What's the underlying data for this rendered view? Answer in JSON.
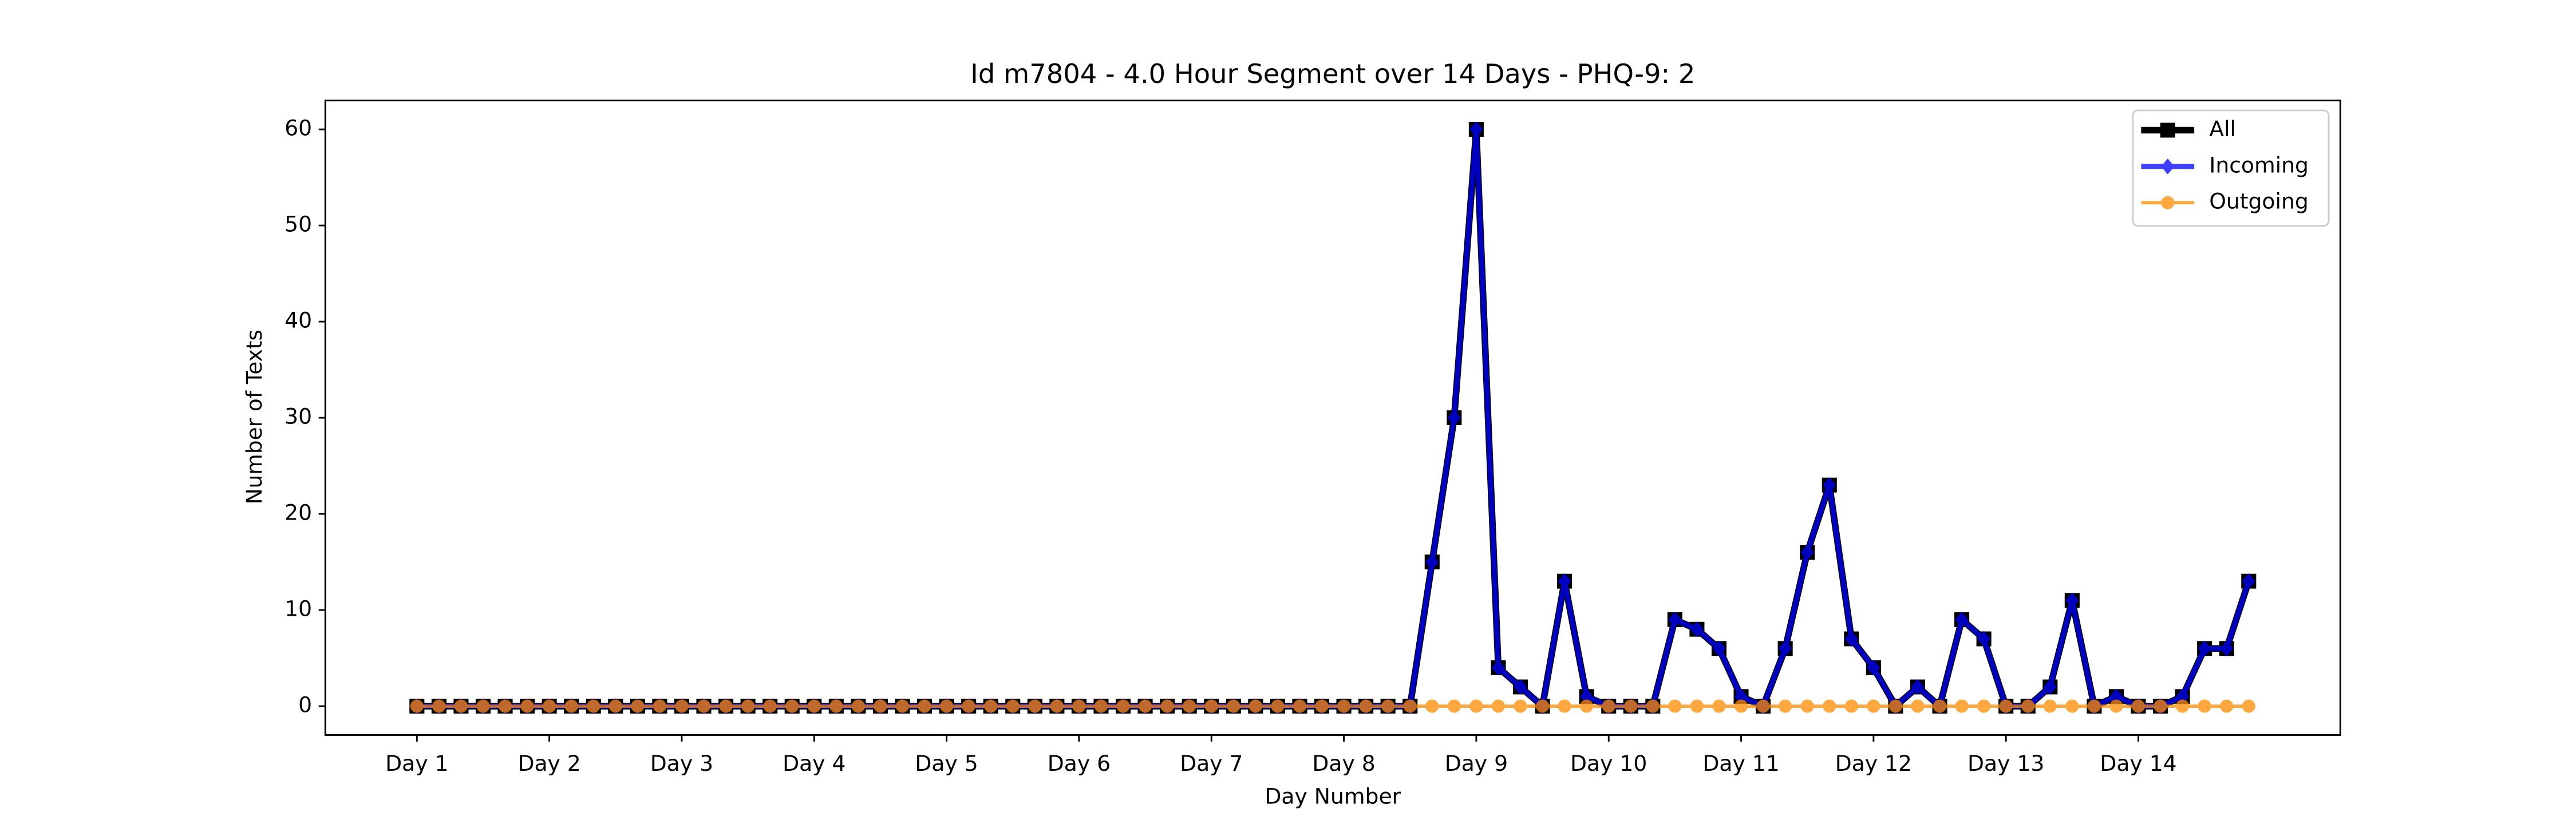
{
  "chart_data": {
    "type": "line",
    "title": "Id m7804 - 4.0 Hour Segment over 14 Days - PHQ-9: 2",
    "xlabel": "Day Number",
    "ylabel": "Number of Texts",
    "x": [
      0,
      1,
      2,
      3,
      4,
      5,
      6,
      7,
      8,
      9,
      10,
      11,
      12,
      13,
      14,
      15,
      16,
      17,
      18,
      19,
      20,
      21,
      22,
      23,
      24,
      25,
      26,
      27,
      28,
      29,
      30,
      31,
      32,
      33,
      34,
      35,
      36,
      37,
      38,
      39,
      40,
      41,
      42,
      43,
      44,
      45,
      46,
      47,
      48,
      49,
      50,
      51,
      52,
      53,
      54,
      55,
      56,
      57,
      58,
      59,
      60,
      61,
      62,
      63,
      64,
      65,
      66,
      67,
      68,
      69,
      70,
      71,
      72,
      73,
      74,
      75,
      76,
      77,
      78,
      79,
      80,
      81,
      82,
      83
    ],
    "series": [
      {
        "name": "All",
        "color": "#000000",
        "marker": "square",
        "values": [
          0,
          0,
          0,
          0,
          0,
          0,
          0,
          0,
          0,
          0,
          0,
          0,
          0,
          0,
          0,
          0,
          0,
          0,
          0,
          0,
          0,
          0,
          0,
          0,
          0,
          0,
          0,
          0,
          0,
          0,
          0,
          0,
          0,
          0,
          0,
          0,
          0,
          0,
          0,
          0,
          0,
          0,
          0,
          0,
          0,
          0,
          15,
          30,
          60,
          4,
          2,
          0,
          13,
          1,
          0,
          0,
          0,
          9,
          8,
          6,
          1,
          0,
          6,
          16,
          23,
          7,
          4,
          0,
          2,
          0,
          9,
          7,
          0,
          0,
          2,
          11,
          0,
          1,
          0,
          0,
          1,
          6,
          6,
          13
        ]
      },
      {
        "name": "Incoming",
        "color": "#0000ff",
        "marker": "diamond",
        "values": [
          0,
          0,
          0,
          0,
          0,
          0,
          0,
          0,
          0,
          0,
          0,
          0,
          0,
          0,
          0,
          0,
          0,
          0,
          0,
          0,
          0,
          0,
          0,
          0,
          0,
          0,
          0,
          0,
          0,
          0,
          0,
          0,
          0,
          0,
          0,
          0,
          0,
          0,
          0,
          0,
          0,
          0,
          0,
          0,
          0,
          0,
          15,
          30,
          60,
          4,
          2,
          0,
          13,
          1,
          0,
          0,
          0,
          9,
          8,
          6,
          1,
          0,
          6,
          16,
          23,
          7,
          4,
          0,
          2,
          0,
          9,
          7,
          0,
          0,
          2,
          11,
          0,
          1,
          0,
          0,
          1,
          6,
          6,
          13
        ]
      },
      {
        "name": "Outgoing",
        "color": "#ff8c00",
        "marker": "circle",
        "values": [
          0,
          0,
          0,
          0,
          0,
          0,
          0,
          0,
          0,
          0,
          0,
          0,
          0,
          0,
          0,
          0,
          0,
          0,
          0,
          0,
          0,
          0,
          0,
          0,
          0,
          0,
          0,
          0,
          0,
          0,
          0,
          0,
          0,
          0,
          0,
          0,
          0,
          0,
          0,
          0,
          0,
          0,
          0,
          0,
          0,
          0,
          0,
          0,
          0,
          0,
          0,
          0,
          0,
          0,
          0,
          0,
          0,
          0,
          0,
          0,
          0,
          0,
          0,
          0,
          0,
          0,
          0,
          0,
          0,
          0,
          0,
          0,
          0,
          0,
          0,
          0,
          0,
          0,
          0,
          0,
          0,
          0,
          0,
          0
        ]
      }
    ],
    "xlim": [
      -4.15,
      87.15
    ],
    "xticks": [
      {
        "value": 0,
        "label": "Day 1"
      },
      {
        "value": 6,
        "label": "Day 2"
      },
      {
        "value": 12,
        "label": "Day 3"
      },
      {
        "value": 18,
        "label": "Day 4"
      },
      {
        "value": 24,
        "label": "Day 5"
      },
      {
        "value": 30,
        "label": "Day 6"
      },
      {
        "value": 36,
        "label": "Day 7"
      },
      {
        "value": 42,
        "label": "Day 8"
      },
      {
        "value": 48,
        "label": "Day 9"
      },
      {
        "value": 54,
        "label": "Day 10"
      },
      {
        "value": 60,
        "label": "Day 11"
      },
      {
        "value": 66,
        "label": "Day 12"
      },
      {
        "value": 72,
        "label": "Day 13"
      },
      {
        "value": 78,
        "label": "Day 14"
      }
    ],
    "ylim": [
      -3,
      63
    ],
    "yticks": [
      0,
      10,
      20,
      30,
      40,
      50,
      60
    ],
    "legend": "upper right"
  }
}
